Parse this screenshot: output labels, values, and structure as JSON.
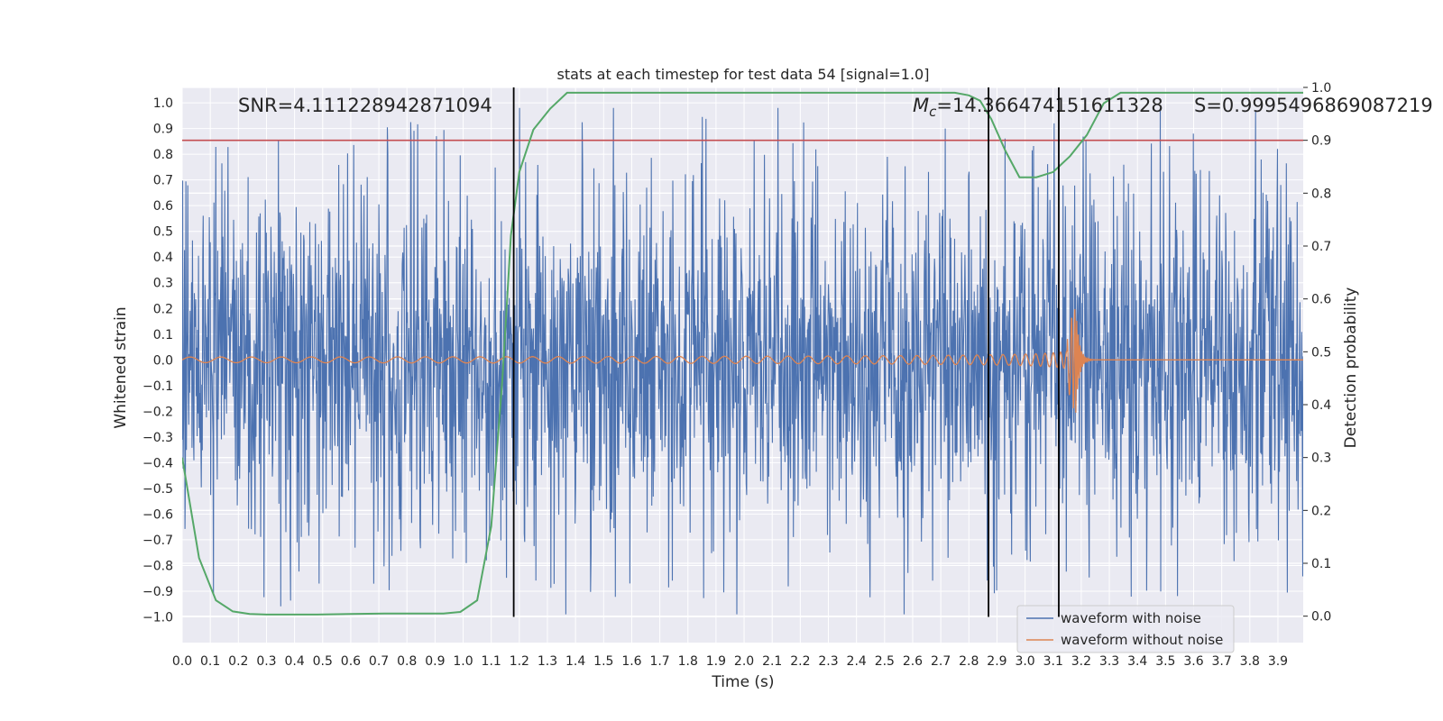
{
  "chart_data": {
    "type": "line",
    "title": "stats at each timestep for test data 54 [signal=1.0]",
    "xlabel": "Time (s)",
    "ylabel": "Whitened strain",
    "y2label": "Detection probability",
    "xlim": [
      0.0,
      3.99
    ],
    "ylim": [
      -1.1,
      1.06
    ],
    "y2lim": [
      -0.05,
      1.0
    ],
    "x_ticks": [
      "0.0",
      "0.1",
      "0.2",
      "0.3",
      "0.4",
      "0.5",
      "0.6",
      "0.7",
      "0.8",
      "0.9",
      "1.0",
      "1.1",
      "1.2",
      "1.3",
      "1.4",
      "1.5",
      "1.6",
      "1.7",
      "1.8",
      "1.9",
      "2.0",
      "2.1",
      "2.2",
      "2.3",
      "2.4",
      "2.5",
      "2.6",
      "2.7",
      "2.8",
      "2.9",
      "3.0",
      "3.1",
      "3.2",
      "3.3",
      "3.4",
      "3.5",
      "3.6",
      "3.7",
      "3.8",
      "3.9"
    ],
    "y_ticks": [
      "1.0",
      "0.9",
      "0.8",
      "0.7",
      "0.6",
      "0.5",
      "0.4",
      "0.3",
      "0.2",
      "0.1",
      "0.0",
      "−0.1",
      "−0.2",
      "−0.3",
      "−0.4",
      "−0.5",
      "−0.6",
      "−0.7",
      "−0.8",
      "−0.9",
      "−1.0"
    ],
    "y2_ticks": [
      "1.0",
      "0.9",
      "0.8",
      "0.7",
      "0.6",
      "0.5",
      "0.4",
      "0.3",
      "0.2",
      "0.1",
      "0.0"
    ],
    "grid": true,
    "legend_position": "bottom-right",
    "annotations": {
      "snr": "SNR=4.111228942871094",
      "mc_symbol": "M",
      "mc_subscript": "c",
      "mc_value": "=14.366474151611328",
      "s": "S=0.9995496869087219"
    },
    "threshold_line": {
      "axis": "y2",
      "value": 0.9,
      "color": "#c44e52"
    },
    "vertical_lines": [
      1.18,
      2.87,
      3.12
    ],
    "series": [
      {
        "name": "waveform with noise",
        "color": "#4c72b0",
        "description_values": {
          "noise_amplitude_typical": 0.45,
          "max": 0.98,
          "min": -0.99
        }
      },
      {
        "name": "waveform without noise",
        "color": "#dd8452",
        "chirp": {
          "start_amplitude": 0.01,
          "peak_time": 3.18,
          "peak_amplitude": 0.22,
          "end_time": 3.2
        }
      },
      {
        "name": "detection_probability",
        "color": "#55a868",
        "axis": "y2",
        "x": [
          0.0,
          0.06,
          0.12,
          0.18,
          0.24,
          0.3,
          0.36,
          0.42,
          0.48,
          0.6,
          0.72,
          0.84,
          0.93,
          0.99,
          1.05,
          1.1,
          1.14,
          1.17,
          1.2,
          1.25,
          1.31,
          1.37,
          1.43,
          1.5,
          2.6,
          2.75,
          2.8,
          2.84,
          2.88,
          2.93,
          2.98,
          3.04,
          3.1,
          3.16,
          3.22,
          3.28,
          3.34,
          3.4,
          3.99
        ],
        "y": [
          0.3,
          0.11,
          0.03,
          0.009,
          0.004,
          0.003,
          0.003,
          0.003,
          0.003,
          0.004,
          0.005,
          0.005,
          0.005,
          0.008,
          0.03,
          0.17,
          0.45,
          0.72,
          0.84,
          0.92,
          0.96,
          0.99,
          0.99,
          0.99,
          0.99,
          0.99,
          0.985,
          0.975,
          0.94,
          0.88,
          0.83,
          0.83,
          0.84,
          0.87,
          0.91,
          0.97,
          0.99,
          0.99,
          0.99
        ]
      }
    ]
  }
}
